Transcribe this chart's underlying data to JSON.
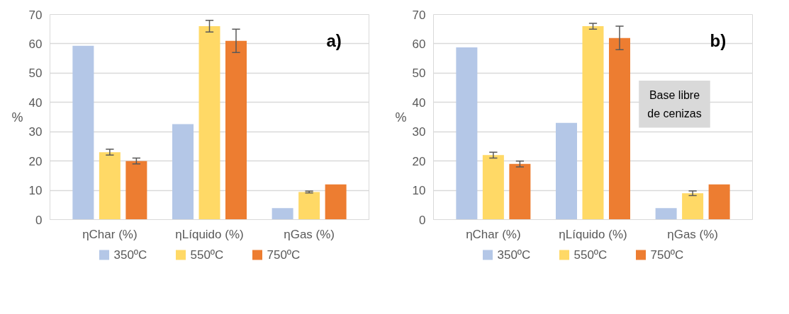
{
  "chart_data": [
    {
      "type": "bar",
      "categories": [
        "ηChar (%)",
        "ηLíquido (%)",
        "ηGas (%)"
      ],
      "ylabel": "%",
      "ylim": [
        0,
        70
      ],
      "yticks": [
        0,
        10,
        20,
        30,
        40,
        50,
        60,
        70
      ],
      "grid": "y",
      "legend": "bottom",
      "annotations": [
        "a)"
      ],
      "series": [
        {
          "name": "350ºC",
          "color": "#b4c7e7",
          "values": [
            59.3,
            32.6,
            3.9
          ]
        },
        {
          "name": "550ºC",
          "color": "#ffd966",
          "values": [
            23,
            66,
            9.4
          ],
          "errors": [
            1,
            2,
            0.3
          ]
        },
        {
          "name": "750ºC",
          "color": "#ed7d31",
          "values": [
            20,
            61,
            12
          ],
          "errors": [
            1,
            4,
            null
          ]
        }
      ]
    },
    {
      "type": "bar",
      "categories": [
        "ηChar (%)",
        "ηLíquido (%)",
        "ηGas (%)"
      ],
      "ylabel": "%",
      "ylim": [
        0,
        70
      ],
      "yticks": [
        0,
        10,
        20,
        30,
        40,
        50,
        60,
        70
      ],
      "grid": "y",
      "legend": "bottom",
      "annotations": [
        "b)",
        "Base libre\nde cenizas"
      ],
      "series": [
        {
          "name": "350ºC",
          "color": "#b4c7e7",
          "values": [
            58.8,
            33,
            3.9
          ]
        },
        {
          "name": "550ºC",
          "color": "#ffd966",
          "values": [
            22,
            66,
            9
          ],
          "errors": [
            1,
            1,
            0.8
          ]
        },
        {
          "name": "750ºC",
          "color": "#ed7d31",
          "values": [
            19,
            62,
            12
          ],
          "errors": [
            1,
            4,
            null
          ]
        }
      ]
    }
  ]
}
